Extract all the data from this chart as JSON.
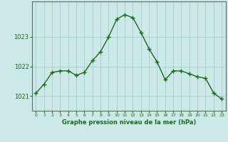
{
  "hours": [
    0,
    1,
    2,
    3,
    4,
    5,
    6,
    7,
    8,
    9,
    10,
    11,
    12,
    13,
    14,
    15,
    16,
    17,
    18,
    19,
    20,
    21,
    22,
    23
  ],
  "pressure": [
    1021.1,
    1021.4,
    1021.8,
    1021.85,
    1021.85,
    1021.7,
    1021.8,
    1022.2,
    1022.5,
    1023.0,
    1023.6,
    1023.75,
    1023.65,
    1023.15,
    1022.6,
    1022.15,
    1021.55,
    1021.85,
    1021.85,
    1021.75,
    1021.65,
    1021.6,
    1021.1,
    1020.9
  ],
  "line_color": "#1a6b1a",
  "marker_color": "#1a6b1a",
  "bg_color": "#cce8e8",
  "grid_color": "#aacccc",
  "text_color": "#1a6b1a",
  "xlabel": "Graphe pression niveau de la mer (hPa)",
  "yticks": [
    1021,
    1022,
    1023
  ],
  "ylim": [
    1020.5,
    1024.2
  ],
  "xlim": [
    -0.5,
    23.5
  ]
}
